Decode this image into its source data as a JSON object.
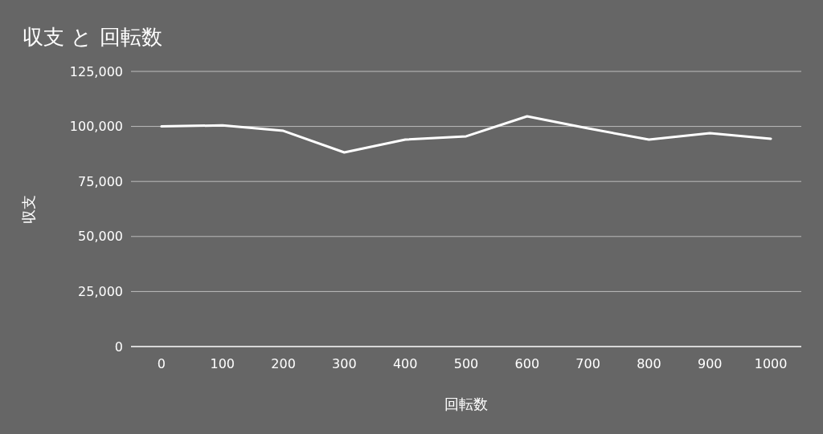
{
  "chart_data": {
    "type": "line",
    "title": "収支 と 回転数",
    "xlabel": "回転数",
    "ylabel": "収支",
    "categories": [
      "0",
      "100",
      "200",
      "300",
      "400",
      "500",
      "600",
      "700",
      "800",
      "900",
      "1000"
    ],
    "series": [
      {
        "color": "#ffffff",
        "values": [
          100000,
          100500,
          98000,
          88200,
          94000,
          95500,
          104600,
          99100,
          94000,
          96900,
          94400
        ]
      }
    ],
    "ylim": [
      0,
      125000
    ],
    "yticks": [
      0,
      {
        "value": 25000,
        "label": "25,000"
      },
      {
        "value": 50000,
        "label": "50,000"
      },
      {
        "value": 75000,
        "label": "75,000"
      },
      {
        "value": 100000,
        "label": "100,000"
      },
      {
        "value": 125000,
        "label": "125,000"
      }
    ],
    "grid": "y",
    "marker": "none",
    "line_style": "solid"
  }
}
